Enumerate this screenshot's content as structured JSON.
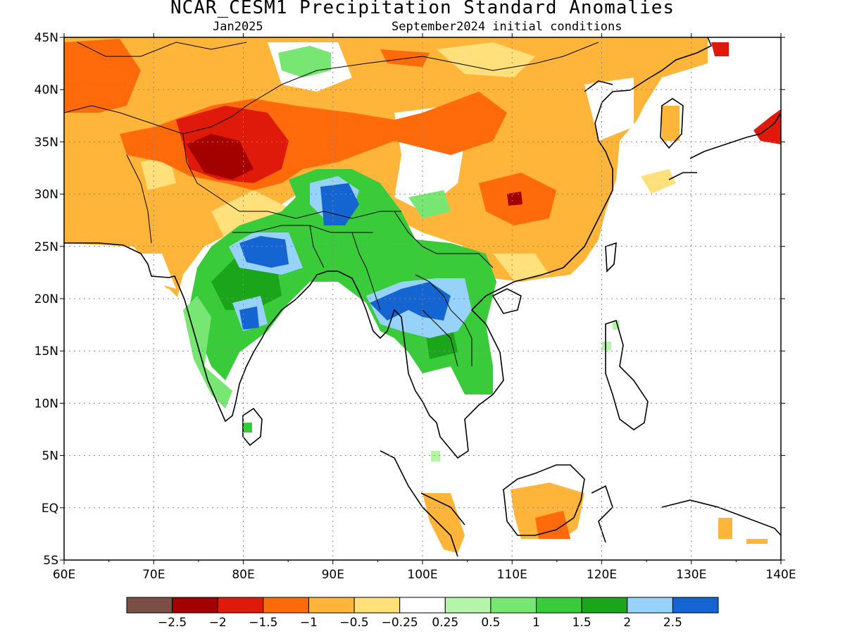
{
  "title": "NCAR_CESM1 Precipitation Standard Anomalies",
  "subtitle_left": "Jan2025",
  "subtitle_right": "September2024 initial conditions",
  "map": {
    "lon_range": [
      60,
      140
    ],
    "lat_range": [
      -5,
      45
    ],
    "lat_ticks": [
      "45N",
      "40N",
      "35N",
      "30N",
      "25N",
      "20N",
      "15N",
      "10N",
      "5N",
      "EQ",
      "5S"
    ],
    "lon_ticks": [
      "60E",
      "70E",
      "80E",
      "90E",
      "100E",
      "110E",
      "120E",
      "130E",
      "140E"
    ],
    "gridlines": true
  },
  "colorbar": {
    "colors": [
      "#7a4f46",
      "#a30000",
      "#e01a0a",
      "#ff6a0a",
      "#ffb43a",
      "#ffe07a",
      "#ffffff",
      "#b4f5a8",
      "#78e672",
      "#3acb3a",
      "#1aa51a",
      "#96d2fa",
      "#1464d2"
    ],
    "labels": [
      "−2.5",
      "−2",
      "−1.5",
      "−1",
      "−0.5",
      "−0.25",
      "0.25",
      "0.5",
      "1",
      "1.5",
      "2",
      "2.5"
    ]
  }
}
